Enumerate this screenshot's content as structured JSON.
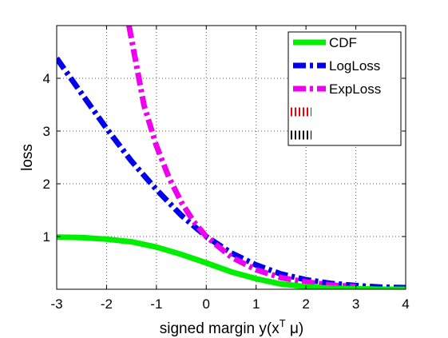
{
  "chart_data": {
    "type": "line",
    "title": "",
    "xlabel": "signed margin y(x",
    "xlabel_sup": "T",
    "xlabel_tail": " μ)",
    "ylabel": "loss",
    "xlim": [
      -3,
      4
    ],
    "ylim": [
      0,
      5
    ],
    "xticks": [
      "-3",
      "-2",
      "-1",
      "0",
      "1",
      "2",
      "3",
      "4"
    ],
    "yticks": [
      "1",
      "2",
      "3",
      "4"
    ],
    "grid": true,
    "legend_placement": "top-right",
    "series": [
      {
        "name": "CDF",
        "color": "#00ee00",
        "style": "solid",
        "x": [
          -3,
          -2.5,
          -2,
          -1.5,
          -1,
          -0.5,
          0,
          0.5,
          1,
          1.5,
          2,
          2.5,
          3,
          3.5,
          4
        ],
        "y": [
          0.99,
          0.98,
          0.95,
          0.9,
          0.8,
          0.66,
          0.5,
          0.33,
          0.2,
          0.1,
          0.05,
          0.02,
          0.01,
          0.0,
          0.0
        ]
      },
      {
        "name": "LogLoss",
        "color": "#0000ee",
        "style": "dashdot",
        "x": [
          -3,
          -2.5,
          -2,
          -1.5,
          -1,
          -0.5,
          0,
          0.5,
          1,
          1.5,
          2,
          2.5,
          3,
          3.5,
          4
        ],
        "y": [
          4.38,
          3.71,
          3.05,
          2.43,
          1.89,
          1.4,
          1.0,
          0.69,
          0.46,
          0.29,
          0.18,
          0.11,
          0.07,
          0.04,
          0.03
        ]
      },
      {
        "name": "ExpLoss",
        "color": "#ee00ee",
        "style": "dashdot",
        "x": [
          -1.55,
          -1.25,
          -1,
          -0.75,
          -0.5,
          -0.25,
          0,
          0.5,
          1,
          1.5,
          2,
          2.5,
          3
        ],
        "y": [
          5.0,
          3.49,
          2.72,
          2.12,
          1.65,
          1.28,
          1.0,
          0.61,
          0.37,
          0.22,
          0.14,
          0.08,
          0.05
        ]
      },
      {
        "name": "",
        "color": "#ee0000",
        "style": "dotted",
        "x": [],
        "y": []
      },
      {
        "name": "",
        "color": "#000000",
        "style": "dotted",
        "x": [],
        "y": []
      }
    ]
  }
}
